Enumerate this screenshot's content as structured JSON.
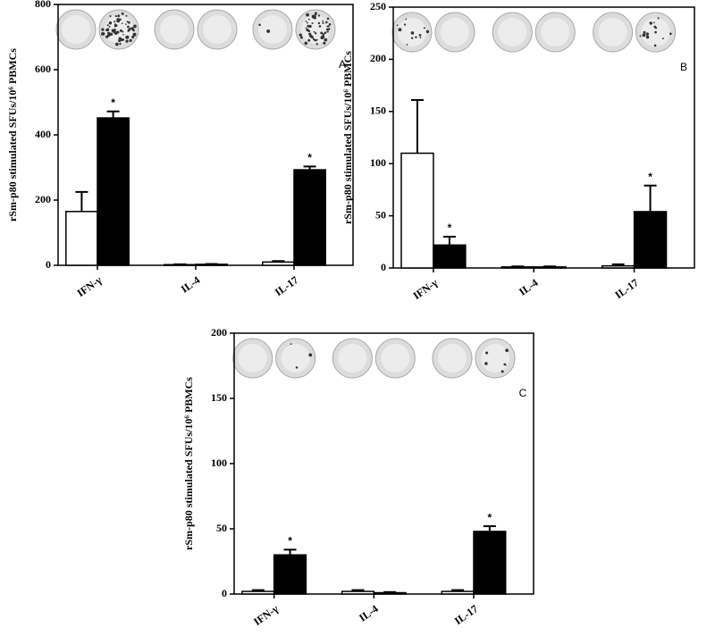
{
  "chart_data": [
    {
      "type": "bar",
      "panel": "A",
      "ylabel": "rSm-p80 stimulated SFUs/10⁶ PBMCs",
      "categories": [
        "IFN-γ",
        "IL-4",
        "IL-17"
      ],
      "ylim": [
        0,
        800
      ],
      "yticks": [
        0,
        200,
        400,
        600,
        800
      ],
      "series": [
        {
          "color": "#ffffff",
          "values": [
            165,
            2,
            10
          ],
          "errors": [
            60,
            1,
            3
          ],
          "markers": [
            null,
            null,
            null
          ]
        },
        {
          "color": "#000000",
          "values": [
            452,
            3,
            293
          ],
          "errors": [
            20,
            1,
            10
          ],
          "markers": [
            "*",
            null,
            "*"
          ]
        }
      ]
    },
    {
      "type": "bar",
      "panel": "B",
      "ylabel": "rSm-p80 stimulated SFUs/10⁶ PBMCs",
      "categories": [
        "IFN-γ",
        "IL-4",
        "IL-17"
      ],
      "ylim": [
        0,
        250
      ],
      "yticks": [
        0,
        50,
        100,
        150,
        200,
        250
      ],
      "series": [
        {
          "color": "#ffffff",
          "values": [
            110,
            1,
            2
          ],
          "errors": [
            51,
            0.5,
            1.5
          ],
          "markers": [
            null,
            null,
            null
          ]
        },
        {
          "color": "#000000",
          "values": [
            22,
            1,
            54
          ],
          "errors": [
            8,
            0.5,
            25
          ],
          "markers": [
            "*",
            null,
            "*"
          ]
        }
      ]
    },
    {
      "type": "bar",
      "panel": "C",
      "ylabel": "rSm-p80 stimulated SFUs/10⁶ PBMCs",
      "categories": [
        "IFN-γ",
        "IL-4",
        "IL-17"
      ],
      "ylim": [
        0,
        200
      ],
      "yticks": [
        0,
        50,
        100,
        150,
        200
      ],
      "series": [
        {
          "color": "#ffffff",
          "values": [
            2,
            2,
            2
          ],
          "errors": [
            1,
            1,
            1
          ],
          "markers": [
            null,
            null,
            null
          ]
        },
        {
          "color": "#000000",
          "values": [
            30,
            1,
            48
          ],
          "errors": [
            4,
            0.5,
            4
          ],
          "markers": [
            "*",
            null,
            "*"
          ]
        }
      ]
    }
  ]
}
